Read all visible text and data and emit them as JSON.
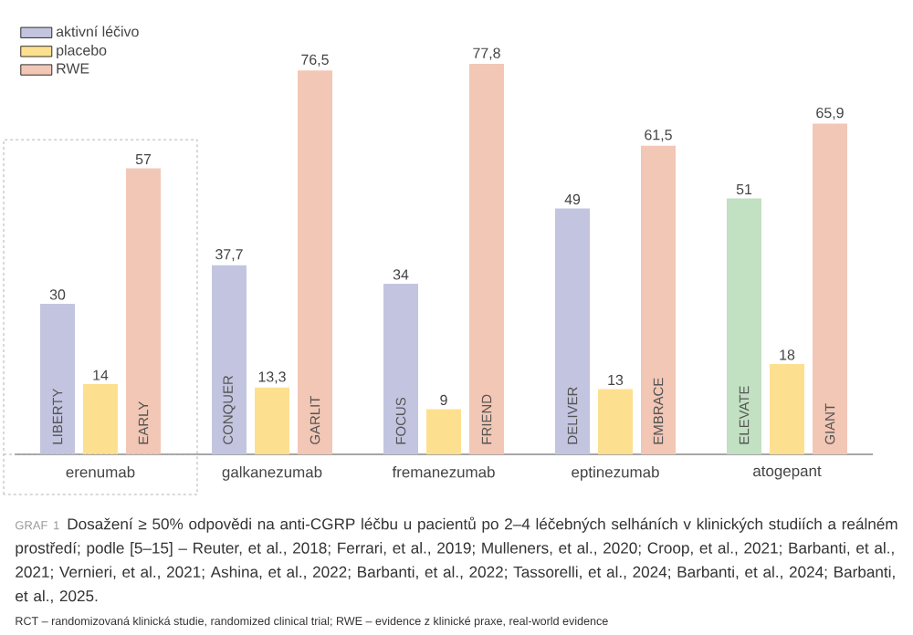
{
  "chart_data": {
    "type": "bar",
    "title": "Dosažení ≥ 50% odpovědi na anti-CGRP léčbu u pacientů po 2–4 léčebných selháních v klinických studiích a reálném prostředí; podle [5–15] – Reuter, et al., 2018; Ferrari, et al., 2019; Mulleners, et al., 2020; Croop, et al., 2021; Barbanti, et al., 2021; Vernieri, et al., 2021; Ashina, et al., 2022; Barbanti, et al., 2022; Tassorelli, et al., 2024; Barbanti, et al., 2024; Barbanti, et al., 2025.",
    "categories": [
      "erenumab",
      "galkanezumab",
      "fremanezumab",
      "eptinezumab",
      "atogepant"
    ],
    "series": [
      {
        "name": "aktivní léčivo",
        "color": "#c3c5e0",
        "colors": [
          "#c3c5e0",
          "#c3c5e0",
          "#c3c5e0",
          "#c3c5e0",
          "#c2e0c2"
        ],
        "values": [
          30,
          37.7,
          34,
          49,
          51
        ],
        "value_labels": [
          "30",
          "37,7",
          "34",
          "49",
          "51"
        ]
      },
      {
        "name": "placebo",
        "color": "#fde08f",
        "values": [
          14,
          13.3,
          9,
          13,
          18
        ],
        "value_labels": [
          "14",
          "13,3",
          "9",
          "13",
          "18"
        ]
      },
      {
        "name": "RWE",
        "color": "#f2c7b5",
        "values": [
          57,
          76.5,
          77.8,
          61.5,
          65.9
        ],
        "value_labels": [
          "57",
          "76,5",
          "77,8",
          "61,5",
          "65,9"
        ]
      }
    ],
    "annotations": [
      "LIBERTY",
      "EARLY",
      "CONQUER",
      "GARLIT",
      "FOCUS",
      "FRIEND",
      "DELIVER",
      "EMBRACE",
      "ELEVATE",
      "GIANT",
      "GRAF 1",
      "RCT – randomizovaná klinická studie, randomized clinical trial; RWE – evidence z klinické praxe, real-world evidence"
    ],
    "legend": "top left"
  }
}
